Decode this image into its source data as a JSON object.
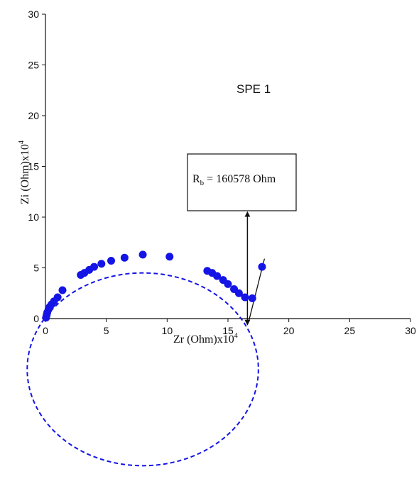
{
  "chart_data": {
    "type": "scatter",
    "title": "",
    "xlabel": "Zr (Ohm)x10",
    "xlabel_exp": "4",
    "ylabel": "Zi (Ohm)x10",
    "ylabel_exp": "4",
    "xlim": [
      0,
      30
    ],
    "ylim": [
      0,
      30
    ],
    "xticks": [
      0,
      5,
      10,
      15,
      20,
      25,
      30
    ],
    "yticks": [
      0,
      5,
      10,
      15,
      20,
      25,
      30
    ],
    "grid": false,
    "legend": "none",
    "annotations": {
      "sample_label": "SPE 1",
      "rb_prefix": "R",
      "rb_sub": "b",
      "rb_value": " = 160578 Ohm"
    },
    "series": [
      {
        "color": "#1414e6",
        "points": [
          [
            0.05,
            0.1
          ],
          [
            0.1,
            0.35
          ],
          [
            0.15,
            0.6
          ],
          [
            0.25,
            0.9
          ],
          [
            0.35,
            1.15
          ],
          [
            0.5,
            1.4
          ],
          [
            0.7,
            1.7
          ],
          [
            1.0,
            2.1
          ],
          [
            1.4,
            2.8
          ],
          [
            2.9,
            4.3
          ],
          [
            3.2,
            4.5
          ],
          [
            3.6,
            4.8
          ],
          [
            4.0,
            5.1
          ],
          [
            4.6,
            5.4
          ],
          [
            5.4,
            5.7
          ],
          [
            6.5,
            6.0
          ],
          [
            8.0,
            6.3
          ],
          [
            10.2,
            6.1
          ],
          [
            13.3,
            4.7
          ],
          [
            13.7,
            4.5
          ],
          [
            14.1,
            4.2
          ],
          [
            14.6,
            3.8
          ],
          [
            15.0,
            3.4
          ],
          [
            15.5,
            2.9
          ],
          [
            15.9,
            2.5
          ],
          [
            16.4,
            2.1
          ],
          [
            17.0,
            2.0
          ],
          [
            17.8,
            5.1
          ]
        ]
      }
    ],
    "fit_circle": {
      "center": [
        8.0,
        -5.0
      ],
      "radius": 9.5,
      "color": "#1414e6",
      "style": "dashed"
    },
    "tangent_line": {
      "from": [
        16.7,
        -0.3
      ],
      "to": [
        18.0,
        5.9
      ]
    },
    "rb_marker_x": 16.6,
    "rb_arrow_y": [
      -0.4,
      10.3
    ]
  }
}
